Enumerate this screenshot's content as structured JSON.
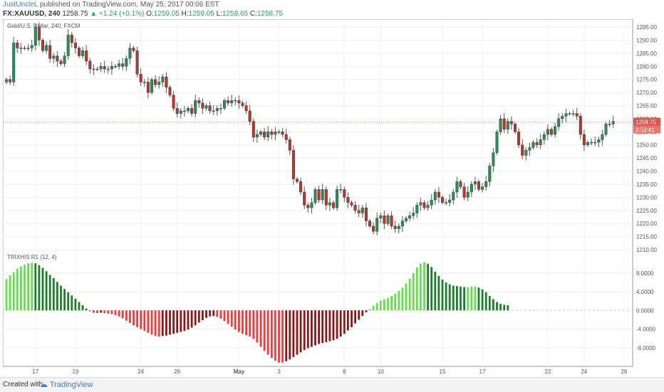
{
  "header": {
    "author": "JustUncleL",
    "published": "published on TradingView.com, May 25, 2017 00:06 EST",
    "symbol": "FX:XAUUSD, 240",
    "last": "1258.75",
    "change": "▲ +1.24 (+0.1%)",
    "open_label": "O:",
    "open": "1259.05",
    "high_label": "H:",
    "high": "1259.05",
    "low_label": "L:",
    "low": "1258.65",
    "close_label": "C:",
    "close": "1258.75"
  },
  "footer": {
    "created": "Created with",
    "brand": "TradingView"
  },
  "colors": {
    "up": "#3c8b4f",
    "down": "#c0392b",
    "bull": "#2e8b57",
    "bear": "#b03a2e",
    "hist_bright_green": "#66dd4f",
    "hist_dark_green": "#1e7d2a",
    "hist_bright_red": "#ee3b3b",
    "hist_dark_red": "#8b1818",
    "price_line": "#e05a4f"
  },
  "chart_data": [
    {
      "type": "candlestick",
      "title": "Gold/U.S. Dollar, 240, FXCM",
      "ylim": [
        1210,
        1298
      ],
      "yticks": [
        "1295.00",
        "1290.00",
        "1285.00",
        "1280.00",
        "1275.00",
        "1270.00",
        "1265.00",
        "1260.00",
        "1255.00",
        "1250.00",
        "1245.00",
        "1240.00",
        "1235.00",
        "1230.00",
        "1225.00",
        "1220.00",
        "1215.00",
        "1210.00"
      ],
      "x_ticks": [
        "17",
        "19",
        "24",
        "26",
        "May",
        "3",
        "8",
        "10",
        "15",
        "17",
        "22",
        "24",
        "26"
      ],
      "last_price_label": "1258.75",
      "countdown_label": "3:53:41",
      "closes": [
        1275,
        1274,
        1289,
        1287,
        1287,
        1287,
        1287,
        1288,
        1295,
        1290,
        1286,
        1288,
        1283,
        1284,
        1282,
        1281,
        1284,
        1292,
        1289,
        1287,
        1284,
        1286,
        1282,
        1279,
        1279,
        1279,
        1280,
        1279,
        1279,
        1280,
        1280,
        1281,
        1280,
        1283,
        1287,
        1286,
        1277,
        1274,
        1274,
        1270,
        1275,
        1273,
        1274,
        1276,
        1272,
        1269,
        1264,
        1262,
        1263,
        1263,
        1264,
        1262,
        1267,
        1266,
        1264,
        1265,
        1263,
        1263,
        1264,
        1264,
        1267,
        1266,
        1267,
        1267,
        1266,
        1265,
        1263,
        1259,
        1253,
        1254,
        1255,
        1253,
        1255,
        1254,
        1255,
        1255,
        1254,
        1252,
        1248,
        1237,
        1236,
        1232,
        1227,
        1226,
        1228,
        1233,
        1229,
        1233,
        1227,
        1228,
        1226,
        1233,
        1233,
        1230,
        1228,
        1227,
        1225,
        1224,
        1226,
        1221,
        1219,
        1217,
        1222,
        1223,
        1220,
        1223,
        1219,
        1218,
        1219,
        1221,
        1222,
        1223,
        1224,
        1227,
        1228,
        1226,
        1227,
        1229,
        1232,
        1230,
        1228,
        1228,
        1229,
        1232,
        1236,
        1234,
        1230,
        1232,
        1235,
        1236,
        1233,
        1234,
        1236,
        1242,
        1247,
        1255,
        1260,
        1256,
        1259,
        1258,
        1255,
        1250,
        1246,
        1248,
        1249,
        1251,
        1250,
        1252,
        1254,
        1256,
        1254,
        1257,
        1260,
        1261,
        1262,
        1262,
        1262,
        1261,
        1254,
        1250,
        1251,
        1251,
        1251,
        1252,
        1254,
        1258,
        1258,
        1259
      ]
    },
    {
      "type": "bar",
      "title": "TRIXHIS R1 (12, 4)",
      "ylim": [
        -12,
        13
      ],
      "yticks": [
        "8.0000",
        "4.0000",
        "0.0000",
        "-4.0000",
        "-8.0000"
      ],
      "values": [
        6.7,
        7.5,
        8.2,
        8.9,
        9.4,
        9.8,
        10.1,
        10.2,
        10.1,
        9.7,
        9.1,
        8.4,
        7.6,
        6.9,
        6.1,
        5.3,
        4.6,
        3.9,
        3.2,
        2.5,
        1.8,
        1.1,
        0.4,
        -0.2,
        -0.5,
        -0.6,
        -0.5,
        -0.6,
        -0.7,
        -0.8,
        -1.0,
        -1.3,
        -1.7,
        -2.2,
        -2.7,
        -3.2,
        -3.6,
        -4.0,
        -4.4,
        -4.8,
        -5.2,
        -5.5,
        -5.6,
        -5.5,
        -5.4,
        -5.2,
        -5.0,
        -4.8,
        -4.6,
        -4.4,
        -4.1,
        -3.7,
        -3.2,
        -2.6,
        -2.1,
        -1.6,
        -1.3,
        -1.2,
        -1.4,
        -1.8,
        -2.3,
        -2.9,
        -3.5,
        -4.1,
        -4.6,
        -5.0,
        -5.3,
        -5.6,
        -6.1,
        -6.9,
        -7.8,
        -8.7,
        -9.5,
        -10.2,
        -10.8,
        -11.2,
        -11.2,
        -10.9,
        -10.5,
        -10.0,
        -9.5,
        -9.0,
        -8.5,
        -8.1,
        -7.8,
        -7.5,
        -7.2,
        -7.0,
        -6.8,
        -6.6,
        -6.4,
        -6.1,
        -5.6,
        -5.0,
        -4.3,
        -3.6,
        -2.8,
        -2.0,
        -1.2,
        -0.4,
        0.3,
        1.0,
        1.6,
        2.1,
        2.4,
        2.7,
        3.1,
        3.6,
        4.2,
        4.9,
        5.8,
        6.8,
        8.0,
        9.2,
        10.0,
        10.3,
        10.0,
        9.3,
        8.3,
        7.4,
        6.6,
        6.0,
        5.6,
        5.3,
        5.2,
        5.1,
        5.0,
        5.0,
        5.1,
        5.1,
        4.9,
        4.5,
        3.9,
        3.1,
        2.4,
        1.8,
        1.4,
        1.2,
        1.1
      ]
    }
  ]
}
